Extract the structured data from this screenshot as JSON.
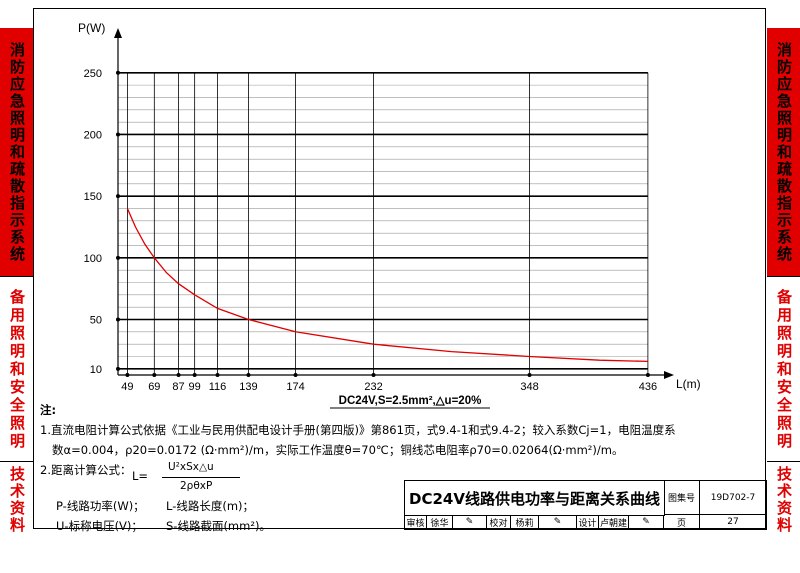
{
  "sidebar_left": [
    "消防应急照明和疏散指示系统",
    "备用照明和安全照明",
    "技术资料"
  ],
  "sidebar_right": [
    "消防应急照明和疏散指示系统",
    "备用照明和安全照明",
    "技术资料"
  ],
  "chart_data": {
    "type": "line",
    "title": "",
    "xlabel": "L(m)",
    "ylabel": "P(W)",
    "xlim": [
      42,
      445
    ],
    "ylim": [
      5,
      262
    ],
    "x_ticks": [
      49,
      69,
      87,
      99,
      116,
      139,
      174,
      232,
      348,
      436
    ],
    "y_ticks": [
      10,
      50,
      100,
      150,
      200,
      250
    ],
    "caption": "DC24V,S=2.5mm²,△u=20%",
    "series": [
      {
        "name": "",
        "color": "#e00000",
        "x": [
          49,
          55,
          62,
          69,
          78,
          87,
          99,
          116,
          139,
          174,
          232,
          290,
          348,
          400,
          436
        ],
        "y": [
          140,
          125,
          111,
          100,
          88,
          79,
          70,
          59,
          50,
          40,
          30,
          24,
          20,
          17,
          16
        ]
      }
    ]
  },
  "notes": {
    "heading": "注:",
    "line1": "1.直流电阻计算公式依据《工业与民用供配电设计手册(第四版)》第861页，式9.4-1和式9.4-2；较入系数Cj=1，电阻温度系",
    "line2": "数α=0.004，ρ20=0.0172 (Ω·mm²)/m，实际工作温度θ=70℃；铜线芯电阻率ρ70=0.02064(Ω·mm²)/m。",
    "line3": "2.距离计算公式：",
    "formula_lhs": "L=",
    "formula_num": "U²xSx△u",
    "formula_den": "2ρθxP",
    "def_p": "P-线路功率(W)；",
    "def_l": "L-线路长度(m)；",
    "def_u": "U-标称电压(V)；",
    "def_s": "S-线路截面(mm²)。"
  },
  "titleblock": {
    "title": "DC24V线路供电功率与距离关系曲线",
    "atlas_label": "图集号",
    "atlas_no": "19D702-7",
    "review_label": "审核",
    "reviewer": "徐华",
    "check_label": "校对",
    "checker": "杨莉",
    "design_label": "设计",
    "designer": "卢朝建",
    "page_label": "页",
    "page_no": "27"
  }
}
